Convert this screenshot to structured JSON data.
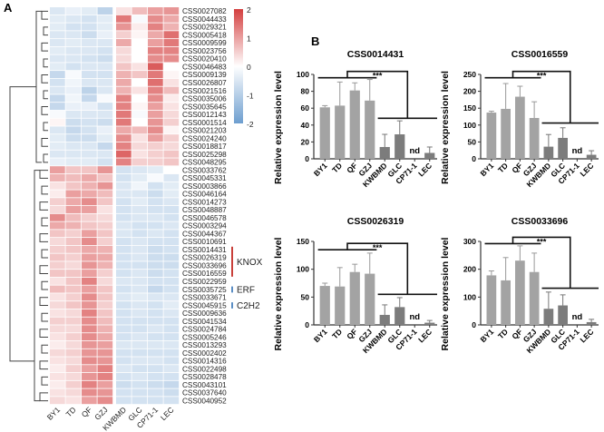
{
  "panel_labels": {
    "a": "A",
    "b": "B"
  },
  "chart_data": [
    {
      "type": "heatmap",
      "columns": [
        "BY1",
        "TD",
        "QF",
        "GZJ",
        "KWBMD",
        "GLC",
        "CP71-1",
        "LEC"
      ],
      "rows": [
        "CSS0027082",
        "CSS0044433",
        "CSS0029321",
        "CSS0005418",
        "CSS0009599",
        "CSS0023756",
        "CSS0020410",
        "CSS0046483",
        "CSS0009139",
        "CSS0026807",
        "CSS0021516",
        "CSS0035006",
        "CSS0035645",
        "CSS0012143",
        "CSS0001514",
        "CSS0021203",
        "CSS0024240",
        "CSS0018817",
        "CSS0025298",
        "CSS0048295",
        "CSS0033762",
        "CSS0045331",
        "CSS0003866",
        "CSS0046164",
        "CSS0014273",
        "CSS0048887",
        "CSS0046578",
        "CSS0003294",
        "CSS0044367",
        "CSS0010691",
        "CSS0014431",
        "CSS0026319",
        "CSS0033696",
        "CSS0016559",
        "CSS0022959",
        "CSS0035725",
        "CSS0033671",
        "CSS0045915",
        "CSS0009636",
        "CSS0041534",
        "CSS0024784",
        "CSS0005246",
        "CSS0013293",
        "CSS0002402",
        "CSS0014316",
        "CSS0022498",
        "CSS0028478",
        "CSS0043101",
        "CSS0037640",
        "CSS0040952"
      ],
      "values": [
        [
          -0.5,
          -0.3,
          -0.4,
          -0.9,
          0.3,
          0.7,
          1.0,
          1.1
        ],
        [
          -0.4,
          -0.5,
          -0.6,
          -0.4,
          1.4,
          -0.1,
          1.2,
          0.9
        ],
        [
          -0.4,
          -0.6,
          -0.6,
          -0.4,
          1.1,
          0.2,
          1.3,
          0.8
        ],
        [
          -0.5,
          -0.5,
          -0.7,
          -0.3,
          0.5,
          0.1,
          0.9,
          1.5
        ],
        [
          -0.5,
          -0.4,
          -0.5,
          -0.5,
          0.9,
          0.0,
          1.0,
          1.4
        ],
        [
          -0.4,
          -0.5,
          -0.5,
          -0.6,
          0.4,
          0.0,
          1.3,
          1.3
        ],
        [
          -0.5,
          -0.5,
          -0.6,
          -0.7,
          0.4,
          0.0,
          1.2,
          1.2
        ],
        [
          -0.4,
          -0.6,
          -0.5,
          -0.5,
          0.6,
          0.3,
          1.7,
          0.0
        ],
        [
          -0.8,
          -0.1,
          -0.6,
          -0.6,
          0.8,
          0.6,
          1.4,
          0.1
        ],
        [
          -0.6,
          -0.2,
          -0.5,
          -0.5,
          0.9,
          0.0,
          1.5,
          0.3
        ],
        [
          -0.5,
          -0.3,
          -0.9,
          -0.5,
          0.8,
          0.3,
          1.3,
          0.7
        ],
        [
          -0.8,
          -0.2,
          -0.8,
          -0.1,
          1.3,
          0.0,
          1.2,
          0.2
        ],
        [
          -0.8,
          -0.3,
          -0.3,
          -0.6,
          1.3,
          0.1,
          1.0,
          0.3
        ],
        [
          -0.1,
          -0.5,
          -0.5,
          -0.5,
          1.4,
          -0.1,
          1.0,
          0.4
        ],
        [
          0.1,
          -0.7,
          -0.6,
          -0.7,
          1.4,
          0.0,
          1.1,
          0.5
        ],
        [
          -0.5,
          -0.8,
          -0.6,
          -0.3,
          0.9,
          0.7,
          1.2,
          0.1
        ],
        [
          -0.4,
          -0.7,
          -0.7,
          -0.4,
          1.2,
          0.3,
          1.0,
          0.5
        ],
        [
          -0.4,
          -0.5,
          -0.5,
          -0.8,
          1.3,
          0.4,
          0.5,
          0.4
        ],
        [
          -0.5,
          -0.5,
          -0.5,
          -0.5,
          1.6,
          0.3,
          0.5,
          0.6
        ],
        [
          -0.3,
          -0.4,
          -0.4,
          -0.6,
          1.3,
          0.5,
          0.5,
          0.6
        ],
        [
          1.0,
          0.6,
          0.6,
          1.1,
          -0.6,
          -0.5,
          -0.4,
          0.0
        ],
        [
          0.8,
          0.7,
          0.9,
          0.6,
          -0.6,
          -0.4,
          -0.1,
          -0.5
        ],
        [
          0.3,
          0.6,
          0.8,
          1.1,
          -0.5,
          -0.2,
          -0.6,
          -0.4
        ],
        [
          0.2,
          1.0,
          0.9,
          0.7,
          -0.5,
          -0.5,
          -0.7,
          -0.4
        ],
        [
          0.5,
          0.9,
          1.2,
          0.6,
          -0.6,
          -0.4,
          -0.6,
          -0.5
        ],
        [
          0.4,
          1.0,
          1.0,
          0.3,
          -0.6,
          -0.5,
          -0.6,
          -0.6
        ],
        [
          1.2,
          0.7,
          0.5,
          0.4,
          -0.6,
          -0.5,
          -0.5,
          -0.6
        ],
        [
          0.9,
          0.8,
          0.6,
          0.5,
          -0.5,
          -0.6,
          -0.6,
          -0.5
        ],
        [
          0.6,
          0.5,
          1.0,
          0.6,
          -0.5,
          -0.6,
          -0.5,
          -0.6
        ],
        [
          0.4,
          0.6,
          1.2,
          0.5,
          -0.6,
          -0.5,
          -0.6,
          -0.6
        ],
        [
          0.5,
          0.6,
          0.9,
          0.8,
          -0.6,
          -0.5,
          -0.7,
          -0.6
        ],
        [
          0.6,
          0.5,
          1.0,
          0.9,
          -0.6,
          -0.5,
          -0.7,
          -0.7
        ],
        [
          0.5,
          0.4,
          1.1,
          0.8,
          -0.6,
          -0.6,
          -0.7,
          -0.7
        ],
        [
          0.6,
          0.6,
          1.0,
          0.5,
          -0.6,
          -0.5,
          -0.7,
          -0.6
        ],
        [
          0.3,
          0.6,
          1.3,
          0.4,
          -0.5,
          -0.5,
          -0.6,
          -0.6
        ],
        [
          0.7,
          0.6,
          1.0,
          0.6,
          -0.6,
          -0.5,
          -0.8,
          -0.6
        ],
        [
          0.3,
          0.5,
          1.2,
          0.6,
          -0.5,
          -0.4,
          -0.5,
          -0.5
        ],
        [
          0.4,
          0.6,
          1.1,
          0.5,
          -0.6,
          -0.5,
          -0.6,
          -0.4
        ],
        [
          0.3,
          0.4,
          1.3,
          0.6,
          -0.6,
          -0.5,
          -0.6,
          -0.5
        ],
        [
          0.5,
          0.5,
          1.2,
          0.7,
          -0.6,
          -0.6,
          -0.6,
          -0.6
        ],
        [
          0.4,
          0.4,
          1.2,
          0.8,
          -0.6,
          -0.6,
          -0.5,
          -0.6
        ],
        [
          0.3,
          0.5,
          1.2,
          0.9,
          -0.6,
          -0.5,
          -0.6,
          -0.6
        ],
        [
          0.2,
          0.4,
          1.1,
          1.0,
          -0.5,
          -0.5,
          -0.5,
          -0.5
        ],
        [
          0.4,
          0.5,
          1.1,
          1.1,
          -0.6,
          -0.6,
          -0.6,
          -0.6
        ],
        [
          0.3,
          0.4,
          1.2,
          1.1,
          -0.6,
          -0.5,
          -0.5,
          -0.6
        ],
        [
          0.2,
          0.5,
          1.0,
          1.3,
          -0.5,
          -0.6,
          -0.6,
          -0.5
        ],
        [
          0.3,
          0.4,
          1.1,
          1.3,
          -0.6,
          -0.5,
          -0.6,
          -0.6
        ],
        [
          0.2,
          0.5,
          1.3,
          1.0,
          -0.7,
          -0.6,
          -0.7,
          -0.8
        ],
        [
          0.3,
          0.4,
          1.2,
          1.1,
          -0.6,
          -0.6,
          -0.6,
          -0.7
        ],
        [
          0.4,
          0.3,
          1.0,
          1.2,
          -0.6,
          -0.6,
          -0.6,
          -0.6
        ]
      ],
      "scale": {
        "min": -2,
        "max": 2,
        "ticks": [
          "2",
          "1",
          "0",
          "-1",
          "-2"
        ],
        "low_color": "#6d9ecf",
        "mid_color": "#ffffff",
        "high_color": "#d43f3f"
      },
      "annotations": [
        {
          "label": "KNOX",
          "rows": [
            "CSS0014431",
            "CSS0026319",
            "CSS0033696",
            "CSS0016559"
          ],
          "color": "#c9403a"
        },
        {
          "label": "ERF",
          "rows": [
            "CSS0035725"
          ],
          "color": "#5b8ec4"
        },
        {
          "label": "C2H2",
          "rows": [
            "CSS0045915"
          ],
          "color": "#5b8ec4"
        }
      ]
    },
    {
      "type": "bar",
      "title": "CSS0014431",
      "ylabel": "Relative expression level",
      "categories": [
        "BY1",
        "TD",
        "QF",
        "GZJ",
        "KWBMD",
        "GLC",
        "CP71-1",
        "LEC"
      ],
      "values": [
        61,
        63,
        81,
        69,
        14,
        29,
        null,
        7
      ],
      "error_upper": [
        63,
        91,
        90,
        94,
        29,
        45,
        null,
        14
      ],
      "ylim": [
        0,
        100
      ],
      "yticks": [
        "0",
        "20",
        "40",
        "60",
        "80",
        "100"
      ],
      "significance": "***",
      "not_detected_label": "nd",
      "bracket_levels": [
        96,
        48
      ]
    },
    {
      "type": "bar",
      "title": "CSS0016559",
      "ylabel": "Relative expression level",
      "categories": [
        "BY1",
        "TD",
        "QF",
        "GZJ",
        "KWBMD",
        "GLC",
        "CP71-1",
        "LEC"
      ],
      "values": [
        137,
        148,
        184,
        121,
        36,
        62,
        null,
        12
      ],
      "error_upper": [
        141,
        223,
        215,
        169,
        72,
        92,
        null,
        24
      ],
      "ylim": [
        0,
        250
      ],
      "yticks": [
        "0",
        "50",
        "100",
        "150",
        "200",
        "250"
      ],
      "significance": "***",
      "not_detected_label": "nd",
      "bracket_levels": [
        240,
        106
      ]
    },
    {
      "type": "bar",
      "title": "CSS0026319",
      "ylabel": "Relative expression level",
      "categories": [
        "BY1",
        "TD",
        "QF",
        "GZJ",
        "KWBMD",
        "GLC",
        "CP71-1",
        "LEC"
      ],
      "values": [
        70,
        69,
        95,
        92,
        18,
        32,
        null,
        4
      ],
      "error_upper": [
        75,
        103,
        109,
        129,
        36,
        49,
        null,
        8
      ],
      "ylim": [
        0,
        150
      ],
      "yticks": [
        "0",
        "50",
        "100",
        "150"
      ],
      "significance": "***",
      "not_detected_label": "nd",
      "bracket_levels": [
        135,
        55
      ]
    },
    {
      "type": "bar",
      "title": "CSS0033696",
      "ylabel": "Relative expression level",
      "categories": [
        "BY1",
        "TD",
        "QF",
        "GZJ",
        "KWBMD",
        "GLC",
        "CP71-1",
        "LEC"
      ],
      "values": [
        178,
        160,
        231,
        190,
        58,
        70,
        null,
        10
      ],
      "error_upper": [
        194,
        242,
        284,
        258,
        118,
        108,
        null,
        20
      ],
      "ylim": [
        0,
        300
      ],
      "yticks": [
        "0",
        "100",
        "200",
        "300"
      ],
      "significance": "***",
      "not_detected_label": "nd",
      "bracket_levels": [
        292,
        132
      ]
    }
  ]
}
